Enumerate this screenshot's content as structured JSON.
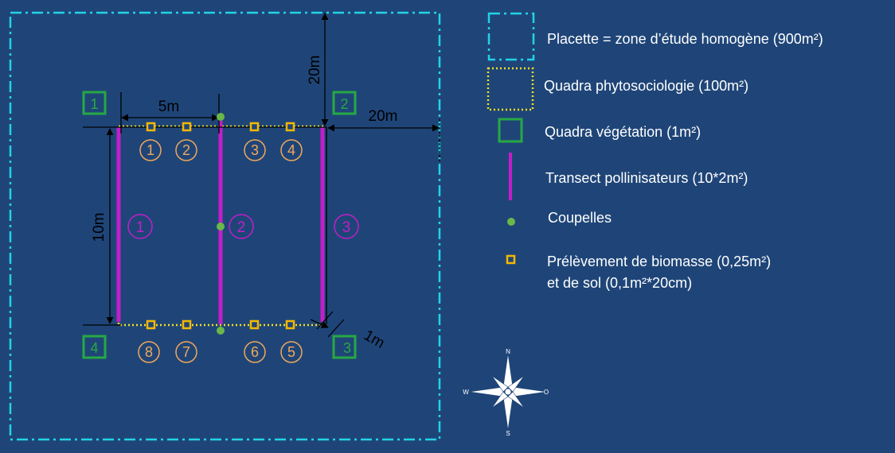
{
  "colors": {
    "background": "#1f4578",
    "placette": "#22d3e6",
    "quadra_phyto": "#f2e01e",
    "quadra_vegetation": "#27a844",
    "transect": "#c21ec8",
    "coupelle": "#6ab848",
    "biomasse": "#f5b800",
    "numbers_orange": "#f0a85a",
    "measure": "#000000",
    "text": "#ffffff"
  },
  "measures": {
    "five_m": "5m",
    "twenty_m_vertical": "20m",
    "twenty_m_horizontal": "20m",
    "ten_m": "10m",
    "one_m": "1m"
  },
  "quadra_vegetation_labels": [
    "1",
    "2",
    "3",
    "4"
  ],
  "biomasse_labels_top": [
    "1",
    "2",
    "3",
    "4"
  ],
  "biomasse_labels_bottom": [
    "8",
    "7",
    "6",
    "5"
  ],
  "transect_labels": [
    "1",
    "2",
    "3"
  ],
  "legend": {
    "placette": "Placette = zone d’étude homogène (900m²)",
    "quadra_phyto": "Quadra phytosociologie (100m²)",
    "quadra_vegetation": "Quadra végétation (1m²)",
    "transect": "Transect pollinisateurs (10*2m²)",
    "coupelles": "Coupelles",
    "biomasse_line1": "Prélèvement de biomasse (0,25m²)",
    "biomasse_line2": "et de sol (0,1m²*20cm)"
  },
  "compass": {
    "n": "N",
    "s": "S",
    "e": "O",
    "w": "W"
  },
  "icons": {
    "compass": "compass-rose-icon",
    "coupelle": "green-dot-icon",
    "biomasse": "orange-square-icon"
  }
}
